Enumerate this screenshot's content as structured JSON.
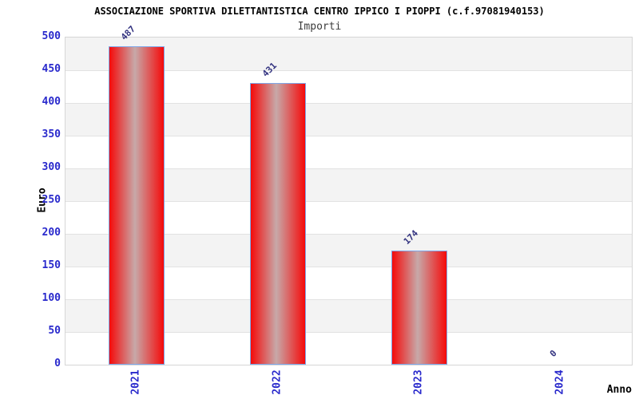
{
  "chart_data": {
    "type": "bar",
    "title": "ASSOCIAZIONE SPORTIVA DILETTANTISTICA CENTRO IPPICO I PIOPPI (c.f.97081940153)",
    "subtitle": "Importi",
    "xlabel": "Anno",
    "ylabel": "Euro",
    "categories": [
      "2021",
      "2022",
      "2023",
      "2024"
    ],
    "values": [
      487,
      431,
      174,
      0
    ],
    "ylim": [
      0,
      500
    ],
    "ytick_step": 50,
    "grid": true,
    "legend": "none",
    "bands_alternating": true,
    "colors": {
      "bar_edge_red": "#f50a0a",
      "bar_center_sheen": "#c7a9a9",
      "bar_border": "#7ea6e8",
      "axis_tick_label": "#2929cc",
      "value_label": "#333380",
      "band_gray": "#f3f3f3",
      "band_white": "#ffffff",
      "gridline": "#e2e2e2",
      "plot_border": "#d6d6d6",
      "title_color": "#000000",
      "subtitle_color": "#3c3c3c"
    }
  }
}
